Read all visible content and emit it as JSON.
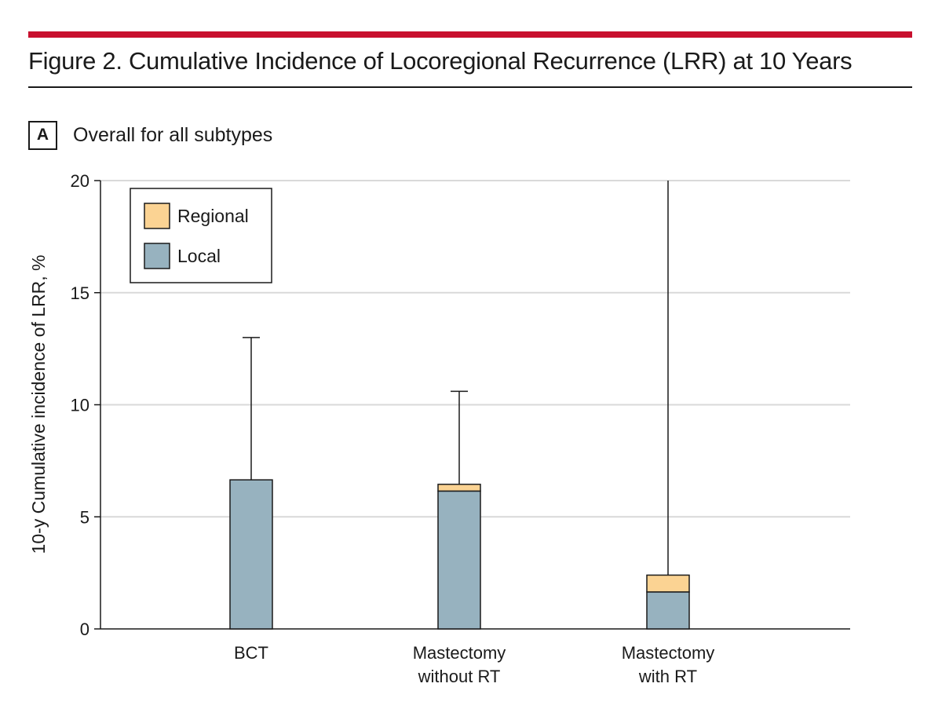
{
  "figure": {
    "title": "Figure 2. Cumulative Incidence of Locoregional Recurrence (LRR) at 10 Years",
    "panel_letter": "A",
    "panel_title": "Overall for all subtypes"
  },
  "colors": {
    "accent_rule": "#c8102e",
    "local": "#97b2bf",
    "regional": "#fbd393",
    "gridline": "#d9d9d9"
  },
  "chart_data": {
    "type": "bar",
    "stacked": true,
    "title": "",
    "xlabel": "",
    "ylabel": "10-y Cumulative incidence of LRR, %",
    "ylim": [
      0,
      20
    ],
    "yticks": [
      0,
      5,
      10,
      15,
      20
    ],
    "grid": true,
    "legend_position": "top-left",
    "categories": [
      [
        "BCT"
      ],
      [
        "Mastectomy",
        "without RT"
      ],
      [
        "Mastectomy",
        "with RT"
      ]
    ],
    "series": [
      {
        "name": "Local",
        "color": "#97b2bf",
        "values": [
          6.65,
          6.15,
          1.65
        ]
      },
      {
        "name": "Regional",
        "color": "#fbd393",
        "values": [
          0,
          0.3,
          0.75
        ]
      }
    ],
    "error_upper": [
      13.0,
      10.6,
      20.0
    ],
    "legend": [
      "Regional",
      "Local"
    ]
  }
}
